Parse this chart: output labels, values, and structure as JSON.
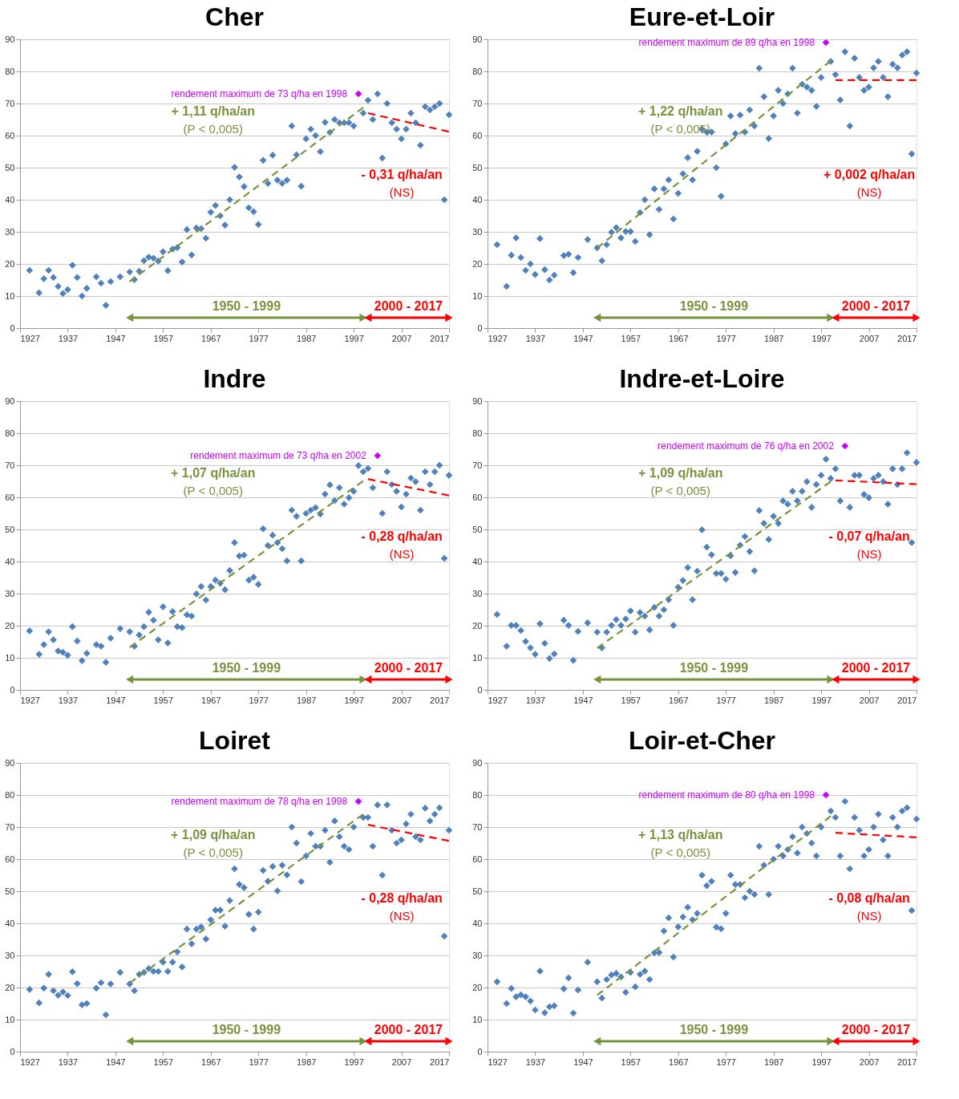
{
  "chart_data": [
    {
      "type": "scatter",
      "title": "Cher",
      "xlim": [
        1927,
        2017
      ],
      "xticks": [
        1927,
        1937,
        1947,
        1957,
        1967,
        1977,
        1987,
        1997,
        2007,
        2017
      ],
      "ylim": [
        0,
        90
      ],
      "yticks": [
        0,
        10,
        20,
        30,
        40,
        50,
        60,
        70,
        80,
        90
      ],
      "grid": "y",
      "series": [
        {
          "color": "#4f81bd",
          "marker": "diamond",
          "x": [
            1929,
            1931,
            1932,
            1933,
            1934,
            1935,
            1936,
            1937,
            1938,
            1939,
            1940,
            1941,
            1943,
            1944,
            1945,
            1946,
            1948,
            1950,
            1951,
            1952,
            1953,
            1954,
            1955,
            1956,
            1957,
            1958,
            1959,
            1960,
            1961,
            1962,
            1963,
            1964,
            1965,
            1966,
            1967,
            1968,
            1969,
            1970,
            1971,
            1972,
            1973,
            1974,
            1975,
            1976,
            1977,
            1978,
            1979,
            1980,
            1981,
            1982,
            1983,
            1984,
            1985,
            1986,
            1987,
            1988,
            1989,
            1990,
            1991,
            1992,
            1993,
            1994,
            1995,
            1996,
            1997,
            1999,
            2000,
            2001,
            2002,
            2003,
            2004,
            2005,
            2006,
            2007,
            2008,
            2009,
            2010,
            2011,
            2012,
            2013,
            2014,
            2015,
            2016,
            2017
          ],
          "values": [
            18,
            11,
            15.4,
            18,
            15.8,
            13,
            10.8,
            12,
            19.6,
            15.8,
            10,
            12.4,
            16,
            14,
            7.1,
            14.5,
            16,
            17.5,
            15.1,
            17.7,
            21,
            22.1,
            21.8,
            20.9,
            23.8,
            17.9,
            24.6,
            25.1,
            20.6,
            30.7,
            22.8,
            31.2,
            31,
            28,
            36.1,
            38.2,
            35,
            32.1,
            40,
            50.1,
            47.1,
            44.1,
            37.5,
            36.3,
            32.3,
            52.3,
            45.1,
            53.9,
            46.1,
            45.1,
            46.1,
            63,
            54,
            44.2,
            59,
            62,
            60,
            55,
            64.1,
            61,
            65,
            64,
            64,
            64,
            63,
            67,
            71,
            65,
            73,
            53,
            70,
            64,
            62,
            59,
            62,
            67,
            64,
            57,
            69,
            68,
            69,
            70,
            40,
            66.5
          ]
        },
        {
          "color": "#cc00ff",
          "marker": "diamond",
          "x": [
            1998
          ],
          "values": [
            73
          ]
        },
        {
          "type": "line",
          "color": "#77933c",
          "line_style": "dashed",
          "marker": "none",
          "x": [
            1950,
            1999
          ],
          "values": [
            14.5,
            68.7
          ]
        },
        {
          "type": "line",
          "color": "#ff0000",
          "line_style": "dashed",
          "marker": "none",
          "x": [
            2000,
            2017
          ],
          "values": [
            67,
            61.2
          ]
        }
      ],
      "annotations": [
        "rendement maximum de 73 q/ha en 1998",
        "+ 1,11 q/ha/an",
        "(P < 0,005)",
        "- 0,31 q/ha/an",
        "(NS)",
        "1950 - 1999",
        "2000 - 2017"
      ]
    },
    {
      "type": "scatter",
      "title": "Eure-et-Loir",
      "xlim": [
        1927,
        2017
      ],
      "xticks": [
        1927,
        1937,
        1947,
        1957,
        1967,
        1977,
        1987,
        1997,
        2007,
        2017
      ],
      "ylim": [
        0,
        90
      ],
      "yticks": [
        0,
        10,
        20,
        30,
        40,
        50,
        60,
        70,
        80,
        90
      ],
      "grid": "y",
      "series": [
        {
          "color": "#4f81bd",
          "marker": "diamond",
          "x": [
            1929,
            1931,
            1932,
            1933,
            1934,
            1935,
            1936,
            1937,
            1938,
            1939,
            1940,
            1941,
            1943,
            1944,
            1945,
            1946,
            1948,
            1950,
            1951,
            1952,
            1953,
            1954,
            1955,
            1956,
            1957,
            1958,
            1959,
            1960,
            1961,
            1962,
            1963,
            1964,
            1965,
            1966,
            1967,
            1968,
            1969,
            1970,
            1971,
            1972,
            1973,
            1974,
            1975,
            1976,
            1977,
            1978,
            1979,
            1980,
            1981,
            1982,
            1983,
            1984,
            1985,
            1986,
            1987,
            1988,
            1989,
            1990,
            1991,
            1992,
            1993,
            1994,
            1995,
            1996,
            1997,
            1999,
            2000,
            2001,
            2002,
            2003,
            2004,
            2005,
            2006,
            2007,
            2008,
            2009,
            2010,
            2011,
            2012,
            2013,
            2014,
            2015,
            2016,
            2017
          ],
          "values": [
            26,
            13,
            22.7,
            28.1,
            22,
            18,
            20,
            16.7,
            27.9,
            18.2,
            15,
            16.5,
            22.6,
            23,
            17.3,
            22,
            27.6,
            25,
            21,
            26,
            29.9,
            31.3,
            28.1,
            30.1,
            30.1,
            27,
            36,
            40,
            29.1,
            43.4,
            37,
            43.4,
            46.2,
            34,
            42,
            48.1,
            53.1,
            46.2,
            55.1,
            62,
            61.1,
            61.1,
            50,
            41.1,
            57.4,
            66.1,
            60.6,
            66.4,
            61.1,
            68,
            63,
            81,
            72.1,
            59.1,
            66.1,
            74.1,
            70,
            73,
            81,
            67,
            76,
            75.1,
            74.1,
            69.1,
            78.1,
            83.1,
            79,
            71.1,
            86.1,
            63,
            84.1,
            78.1,
            74.1,
            75.1,
            81.1,
            83.1,
            78.1,
            72.1,
            82.2,
            81.1,
            85.1,
            86.1,
            54.3,
            79.5
          ]
        },
        {
          "color": "#cc00ff",
          "marker": "diamond",
          "x": [
            1998
          ],
          "values": [
            89
          ]
        },
        {
          "type": "line",
          "color": "#77933c",
          "line_style": "dashed",
          "marker": "none",
          "x": [
            1950,
            1999
          ],
          "values": [
            25,
            83.3
          ]
        },
        {
          "type": "line",
          "color": "#ff0000",
          "line_style": "dashed",
          "marker": "none",
          "x": [
            2000,
            2017
          ],
          "values": [
            77.3,
            77.3
          ]
        }
      ],
      "annotations": [
        "rendement maximum de 89 q/ha en 1998",
        "+ 1,22 q/ha/an",
        "(P < 0,005)",
        "+ 0,002 q/ha/an",
        "(NS)",
        "1950 - 1999",
        "2000 - 2017"
      ]
    },
    {
      "type": "scatter",
      "title": "Indre",
      "xlim": [
        1927,
        2017
      ],
      "xticks": [
        1927,
        1937,
        1947,
        1957,
        1967,
        1977,
        1987,
        1997,
        2007,
        2017
      ],
      "ylim": [
        0,
        90
      ],
      "yticks": [
        0,
        10,
        20,
        30,
        40,
        50,
        60,
        70,
        80,
        90
      ],
      "grid": "y",
      "series": [
        {
          "color": "#4f81bd",
          "marker": "diamond",
          "x": [
            1929,
            1931,
            1932,
            1933,
            1934,
            1935,
            1936,
            1937,
            1938,
            1939,
            1940,
            1941,
            1943,
            1944,
            1945,
            1946,
            1948,
            1950,
            1951,
            1952,
            1953,
            1954,
            1955,
            1956,
            1957,
            1958,
            1959,
            1960,
            1961,
            1962,
            1963,
            1964,
            1965,
            1966,
            1967,
            1968,
            1969,
            1970,
            1971,
            1972,
            1973,
            1974,
            1975,
            1976,
            1977,
            1978,
            1979,
            1980,
            1981,
            1982,
            1983,
            1984,
            1985,
            1986,
            1987,
            1988,
            1989,
            1990,
            1991,
            1992,
            1993,
            1994,
            1995,
            1996,
            1997,
            1998,
            1999,
            2000,
            2001,
            2003,
            2004,
            2005,
            2006,
            2007,
            2008,
            2009,
            2010,
            2011,
            2012,
            2013,
            2014,
            2015,
            2016,
            2017
          ],
          "values": [
            18.4,
            11.1,
            14.1,
            18.1,
            15.6,
            12.1,
            11.7,
            10.8,
            19.7,
            15.2,
            9.1,
            11.4,
            14.1,
            13.6,
            8.6,
            16.1,
            19.1,
            18.1,
            13.6,
            17.1,
            19.7,
            24.2,
            21.7,
            15.6,
            25.9,
            14.6,
            24.4,
            19.7,
            19.4,
            23.4,
            23,
            29.9,
            32.2,
            28,
            32.2,
            34.2,
            33.2,
            31.2,
            37.2,
            45.9,
            41.7,
            42,
            34.2,
            35.1,
            32.9,
            50.2,
            45,
            48.2,
            45.9,
            44,
            40.2,
            56,
            54.1,
            40.2,
            55,
            56,
            56.8,
            54.8,
            61,
            63.9,
            59,
            63,
            57.9,
            59.9,
            61.9,
            69.9,
            68,
            69,
            63,
            55,
            68,
            64,
            61.9,
            57,
            61,
            66,
            64.9,
            56,
            68,
            64,
            68,
            70,
            41,
            66.9
          ]
        },
        {
          "color": "#cc00ff",
          "marker": "diamond",
          "x": [
            2002
          ],
          "values": [
            73
          ]
        },
        {
          "type": "line",
          "color": "#77933c",
          "line_style": "dashed",
          "marker": "none",
          "x": [
            1950,
            1999
          ],
          "values": [
            13.3,
            65.1
          ]
        },
        {
          "type": "line",
          "color": "#ff0000",
          "line_style": "dashed",
          "marker": "none",
          "x": [
            2000,
            2017
          ],
          "values": [
            65.7,
            60.6
          ]
        }
      ],
      "annotations": [
        "rendement maximum de 73 q/ha en 2002",
        "+ 1,07 q/ha/an",
        "(P < 0,005)",
        "- 0,28 q/ha/an",
        "(NS)",
        "1950 - 1999",
        "2000 - 2017"
      ]
    },
    {
      "type": "scatter",
      "title": "Indre-et-Loire",
      "xlim": [
        1927,
        2017
      ],
      "xticks": [
        1927,
        1937,
        1947,
        1957,
        1967,
        1977,
        1987,
        1997,
        2007,
        2017
      ],
      "ylim": [
        0,
        90
      ],
      "yticks": [
        0,
        10,
        20,
        30,
        40,
        50,
        60,
        70,
        80,
        90
      ],
      "grid": "y",
      "series": [
        {
          "color": "#4f81bd",
          "marker": "diamond",
          "x": [
            1929,
            1931,
            1932,
            1933,
            1934,
            1935,
            1936,
            1937,
            1938,
            1939,
            1940,
            1941,
            1943,
            1944,
            1945,
            1946,
            1948,
            1950,
            1951,
            1952,
            1953,
            1954,
            1955,
            1956,
            1957,
            1958,
            1959,
            1960,
            1961,
            1962,
            1963,
            1964,
            1965,
            1966,
            1967,
            1968,
            1969,
            1970,
            1971,
            1972,
            1973,
            1974,
            1975,
            1976,
            1977,
            1978,
            1979,
            1980,
            1981,
            1982,
            1983,
            1984,
            1985,
            1986,
            1987,
            1988,
            1989,
            1990,
            1991,
            1992,
            1993,
            1994,
            1995,
            1996,
            1997,
            1998,
            1999,
            2000,
            2001,
            2003,
            2004,
            2005,
            2006,
            2007,
            2008,
            2009,
            2010,
            2011,
            2012,
            2013,
            2014,
            2015,
            2016,
            2017
          ],
          "values": [
            23.5,
            13.6,
            20.1,
            20.1,
            18.5,
            15.1,
            13.1,
            11.1,
            20.6,
            14.5,
            9.8,
            11.2,
            21.7,
            20.1,
            9.2,
            18.2,
            20.9,
            18,
            13.1,
            18,
            20.1,
            21.9,
            20.1,
            22.1,
            24.6,
            18,
            24.1,
            23,
            18.7,
            25.7,
            23,
            25,
            28.1,
            20.1,
            32,
            34.1,
            38.1,
            28.1,
            37,
            49.9,
            44.5,
            42.1,
            36.3,
            36.3,
            34.5,
            41.8,
            36.6,
            45.1,
            47.8,
            43.1,
            37.1,
            55.9,
            51.9,
            46.9,
            54.1,
            51.9,
            58.9,
            57.9,
            61.9,
            58.9,
            61.9,
            64.9,
            56.9,
            64,
            66.9,
            71.9,
            65.9,
            68.9,
            58.9,
            56.9,
            66.9,
            66.9,
            60.9,
            59.9,
            65.9,
            66.9,
            64.9,
            57.9,
            68.9,
            64,
            68.9,
            73.9,
            45.9,
            70.9
          ]
        },
        {
          "color": "#cc00ff",
          "marker": "diamond",
          "x": [
            2002
          ],
          "values": [
            76
          ]
        },
        {
          "type": "line",
          "color": "#77933c",
          "line_style": "dashed",
          "marker": "none",
          "x": [
            1950,
            1999
          ],
          "values": [
            13,
            64.9
          ]
        },
        {
          "type": "line",
          "color": "#ff0000",
          "line_style": "dashed",
          "marker": "none",
          "x": [
            2000,
            2017
          ],
          "values": [
            65.3,
            64.1
          ]
        }
      ],
      "annotations": [
        "rendement maximum de 76 q/ha en 2002",
        "+ 1,09 q/ha/an",
        "(P < 0,005)",
        "- 0,07 q/ha/an",
        "(NS)",
        "1950 - 1999",
        "2000 - 2017"
      ]
    },
    {
      "type": "scatter",
      "title": "Loiret",
      "xlim": [
        1927,
        2017
      ],
      "xticks": [
        1927,
        1937,
        1947,
        1957,
        1967,
        1977,
        1987,
        1997,
        2007,
        2017
      ],
      "ylim": [
        0,
        90
      ],
      "yticks": [
        0,
        10,
        20,
        30,
        40,
        50,
        60,
        70,
        80,
        90
      ],
      "grid": "y",
      "series": [
        {
          "color": "#4f81bd",
          "marker": "diamond",
          "x": [
            1929,
            1931,
            1932,
            1933,
            1934,
            1935,
            1936,
            1937,
            1938,
            1939,
            1940,
            1941,
            1943,
            1944,
            1945,
            1946,
            1948,
            1950,
            1951,
            1952,
            1953,
            1954,
            1955,
            1956,
            1957,
            1958,
            1959,
            1960,
            1961,
            1962,
            1963,
            1964,
            1965,
            1966,
            1967,
            1968,
            1969,
            1970,
            1971,
            1972,
            1973,
            1974,
            1975,
            1976,
            1977,
            1978,
            1979,
            1980,
            1981,
            1982,
            1983,
            1984,
            1985,
            1986,
            1987,
            1988,
            1989,
            1990,
            1991,
            1992,
            1993,
            1994,
            1995,
            1996,
            1997,
            1999,
            2000,
            2001,
            2002,
            2003,
            2004,
            2005,
            2006,
            2007,
            2008,
            2009,
            2010,
            2011,
            2012,
            2013,
            2014,
            2015,
            2016,
            2017
          ],
          "values": [
            19.4,
            15.2,
            19.8,
            24.1,
            19,
            17.6,
            18.6,
            17.5,
            24.9,
            21.2,
            14.6,
            15,
            19.8,
            21.5,
            11.5,
            21.1,
            24.7,
            21.1,
            19,
            24.1,
            24.7,
            25.9,
            25,
            25,
            27.9,
            25,
            27.9,
            31.1,
            26.4,
            38.2,
            33.6,
            38.2,
            38.9,
            35.1,
            41.1,
            44.1,
            44.1,
            39.1,
            47.1,
            57,
            52.1,
            51.1,
            42.8,
            38.2,
            43.5,
            56.5,
            53.1,
            57.7,
            50.1,
            58.1,
            55.1,
            70,
            65,
            53,
            61,
            68,
            64,
            64,
            69,
            59,
            71.9,
            67,
            64,
            63,
            70,
            73,
            73,
            64,
            76.9,
            55,
            76.9,
            69,
            65,
            66,
            71,
            74,
            67,
            66,
            75.9,
            71.9,
            74,
            76,
            36,
            69
          ]
        },
        {
          "color": "#cc00ff",
          "marker": "diamond",
          "x": [
            1998
          ],
          "values": [
            78
          ]
        },
        {
          "type": "line",
          "color": "#77933c",
          "line_style": "dashed",
          "marker": "none",
          "x": [
            1950,
            1999
          ],
          "values": [
            21.4,
            74
          ]
        },
        {
          "type": "line",
          "color": "#ff0000",
          "line_style": "dashed",
          "marker": "none",
          "x": [
            2000,
            2017
          ],
          "values": [
            70.7,
            65.7
          ]
        }
      ],
      "annotations": [
        "rendement maximum de 78 q/ha en 1998",
        "+ 1,09 q/ha/an",
        "(P < 0,005)",
        "- 0,28 q/ha/an",
        "(NS)",
        "1950 - 1999",
        "2000 - 2017"
      ]
    },
    {
      "type": "scatter",
      "title": "Loir-et-Cher",
      "xlim": [
        1927,
        2017
      ],
      "xticks": [
        1927,
        1937,
        1947,
        1957,
        1967,
        1977,
        1987,
        1997,
        2007,
        2017
      ],
      "ylim": [
        0,
        90
      ],
      "yticks": [
        0,
        10,
        20,
        30,
        40,
        50,
        60,
        70,
        80,
        90
      ],
      "grid": "y",
      "series": [
        {
          "color": "#4f81bd",
          "marker": "diamond",
          "x": [
            1929,
            1931,
            1932,
            1933,
            1934,
            1935,
            1936,
            1937,
            1938,
            1939,
            1940,
            1941,
            1943,
            1944,
            1945,
            1946,
            1948,
            1950,
            1951,
            1952,
            1953,
            1954,
            1955,
            1956,
            1957,
            1958,
            1959,
            1960,
            1961,
            1962,
            1963,
            1964,
            1965,
            1966,
            1967,
            1968,
            1969,
            1970,
            1971,
            1972,
            1973,
            1974,
            1975,
            1976,
            1977,
            1978,
            1979,
            1980,
            1981,
            1982,
            1983,
            1984,
            1985,
            1986,
            1987,
            1988,
            1989,
            1990,
            1991,
            1992,
            1993,
            1994,
            1995,
            1996,
            1997,
            1999,
            2000,
            2001,
            2002,
            2003,
            2004,
            2005,
            2006,
            2007,
            2008,
            2009,
            2010,
            2011,
            2012,
            2013,
            2014,
            2015,
            2016,
            2017
          ],
          "values": [
            21.8,
            15,
            19.7,
            17.1,
            17.7,
            17.1,
            15.8,
            13,
            25.1,
            12.1,
            14,
            14.3,
            19.6,
            23,
            12,
            19.2,
            27.9,
            21.8,
            16.7,
            22.5,
            23.9,
            24.4,
            23.3,
            18.5,
            24.7,
            20.2,
            24.1,
            25.1,
            22.5,
            30.8,
            30.9,
            37.6,
            41.7,
            29.5,
            38.9,
            42,
            45,
            41.1,
            43.1,
            55,
            51.7,
            53.1,
            38.8,
            38.3,
            43.1,
            55,
            52.1,
            52.1,
            48,
            50,
            49,
            64,
            58.1,
            49,
            60,
            64,
            61,
            63,
            67,
            61.9,
            70,
            68,
            65,
            61,
            70,
            75,
            73,
            61,
            78,
            57,
            73,
            69,
            61,
            63,
            70,
            74,
            66,
            61,
            73,
            70,
            75,
            76,
            44,
            72.5
          ]
        },
        {
          "color": "#cc00ff",
          "marker": "diamond",
          "x": [
            1998
          ],
          "values": [
            80
          ]
        },
        {
          "type": "line",
          "color": "#77933c",
          "line_style": "dashed",
          "marker": "none",
          "x": [
            1950,
            1999
          ],
          "values": [
            17.6,
            73.4
          ]
        },
        {
          "type": "line",
          "color": "#ff0000",
          "line_style": "dashed",
          "marker": "none",
          "x": [
            2000,
            2017
          ],
          "values": [
            68.2,
            66.8
          ]
        }
      ],
      "annotations": [
        "rendement maximum de 80 q/ha en 1998",
        "+ 1,13 q/ha/an",
        "(P < 0,005)",
        "- 0,08 q/ha/an",
        "(NS)",
        "1950 - 1999",
        "2000 - 2017"
      ]
    }
  ]
}
